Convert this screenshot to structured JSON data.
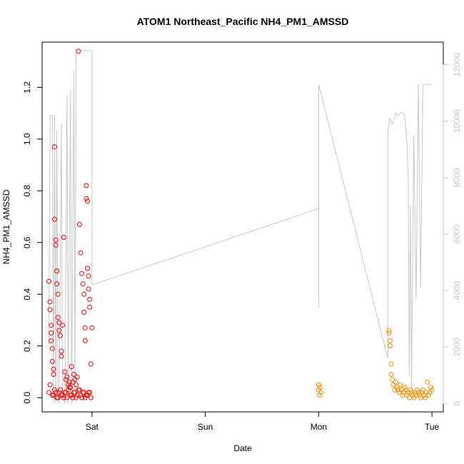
{
  "chart_data": {
    "type": "scatter",
    "title": "ATOM1 Northeast_Pacific NH4_PM1_AMSSD",
    "xlabel": "Date",
    "ylabel": "NH4_PM1_AMSSD",
    "x_ticks": [
      "Sat",
      "Sun",
      "Mon",
      "Tue"
    ],
    "y_ticks": [
      "0.0",
      "0.2",
      "0.4",
      "0.6",
      "0.8",
      "1.0",
      "1.2"
    ],
    "y2_ticks": [
      "0",
      "2000",
      "4000",
      "6000",
      "8000",
      "10000",
      "12000"
    ],
    "xlim_days": [
      -0.44,
      3.1
    ],
    "ylim": [
      -0.055,
      1.375
    ],
    "y2lim": [
      -300,
      12800
    ],
    "grid": false,
    "colors": {
      "series_1": "#ff0000",
      "series_2": "#ff8c00",
      "secondary_line": "#c8c8c8"
    },
    "series": [
      {
        "color": "#ff0000",
        "x_days": [
          -0.38,
          -0.37,
          -0.37,
          -0.36,
          -0.36,
          -0.36,
          -0.35,
          -0.35,
          -0.34,
          -0.34,
          -0.33,
          -0.33,
          -0.32,
          -0.32,
          -0.31,
          -0.31,
          -0.3,
          -0.3,
          -0.29,
          -0.29,
          -0.28,
          -0.27,
          -0.27,
          -0.26,
          -0.25,
          -0.24,
          -0.23,
          -0.22,
          -0.21,
          -0.2,
          -0.19,
          -0.18,
          -0.17,
          -0.16,
          -0.15,
          -0.14,
          -0.13,
          -0.12,
          -0.11,
          -0.1,
          -0.09,
          -0.08,
          -0.07,
          -0.07,
          -0.06,
          -0.06,
          -0.05,
          -0.05,
          -0.04,
          -0.04,
          -0.03,
          -0.03,
          -0.02,
          -0.02,
          -0.01,
          0.0,
          -0.38,
          -0.35,
          -0.33,
          -0.31,
          -0.29,
          -0.27,
          -0.25,
          -0.23,
          -0.21,
          -0.19,
          -0.17,
          -0.15,
          -0.13,
          -0.11,
          -0.09,
          -0.07,
          -0.05,
          -0.03,
          -0.01,
          -0.37,
          -0.34,
          -0.32,
          -0.3,
          -0.28,
          -0.26,
          -0.24,
          -0.22,
          -0.2,
          -0.18,
          -0.16,
          -0.14,
          -0.12,
          -0.1,
          -0.08,
          -0.06,
          -0.04,
          -0.02
        ],
        "y": [
          0.45,
          0.37,
          0.34,
          0.28,
          0.25,
          0.22,
          0.19,
          0.14,
          0.11,
          0.09,
          0.97,
          0.69,
          0.61,
          0.59,
          0.49,
          0.44,
          0.4,
          0.31,
          0.29,
          0.26,
          0.24,
          0.18,
          0.16,
          0.28,
          0.62,
          0.1,
          0.07,
          0.08,
          0.05,
          0.06,
          0.04,
          0.12,
          0.06,
          0.09,
          0.07,
          0.05,
          0.08,
          1.34,
          0.67,
          0.56,
          0.48,
          0.44,
          0.4,
          0.33,
          0.27,
          0.22,
          0.82,
          0.77,
          0.76,
          0.5,
          0.47,
          0.42,
          0.38,
          0.35,
          0.13,
          0.27,
          0.02,
          0.01,
          0.03,
          0.0,
          0.02,
          0.01,
          0.0,
          0.02,
          0.03,
          0.01,
          0.0,
          0.02,
          0.01,
          0.03,
          0.0,
          0.02,
          0.01,
          0.02,
          0.0,
          0.05,
          0.01,
          0.02,
          0.0,
          0.03,
          0.01,
          0.02,
          0.0,
          0.04,
          0.01,
          0.02,
          0.0,
          0.03,
          0.01,
          0.02,
          0.0,
          0.01,
          0.02
        ]
      },
      {
        "color": "#ff8c00",
        "x_days": [
          2.0,
          2.0,
          2.01,
          2.01,
          2.02,
          2.62,
          2.62,
          2.63,
          2.63,
          2.64,
          2.64,
          2.65,
          2.66,
          2.67,
          2.68,
          2.69,
          2.7,
          2.71,
          2.72,
          2.73,
          2.74,
          2.75,
          2.76,
          2.77,
          2.78,
          2.79,
          2.8,
          2.81,
          2.82,
          2.83,
          2.84,
          2.85,
          2.86,
          2.87,
          2.88,
          2.89,
          2.9,
          2.91,
          2.92,
          2.93,
          2.94,
          2.95,
          2.96,
          2.97,
          2.98,
          2.99,
          3.0
        ],
        "y": [
          0.05,
          0.03,
          0.01,
          0.04,
          0.02,
          0.26,
          0.25,
          0.22,
          0.2,
          0.13,
          0.09,
          0.07,
          0.05,
          0.03,
          0.06,
          0.04,
          0.03,
          0.02,
          0.05,
          0.03,
          0.01,
          0.02,
          0.04,
          0.03,
          0.01,
          0.02,
          0.0,
          0.03,
          0.02,
          0.01,
          0.0,
          0.02,
          0.01,
          0.03,
          0.02,
          0.01,
          0.0,
          0.02,
          0.03,
          0.01,
          0.0,
          0.02,
          0.06,
          0.01,
          0.02,
          0.04,
          0.03
        ]
      }
    ],
    "secondary_line": {
      "color": "#c8c8c8",
      "points": [
        [
          -0.38,
          2100
        ],
        [
          -0.37,
          10200
        ],
        [
          -0.35,
          10200
        ],
        [
          -0.34,
          0
        ],
        [
          -0.33,
          10200
        ],
        [
          -0.32,
          0
        ],
        [
          -0.31,
          9700
        ],
        [
          -0.3,
          200
        ],
        [
          -0.29,
          0
        ],
        [
          -0.27,
          9900
        ],
        [
          -0.26,
          300
        ],
        [
          -0.24,
          0
        ],
        [
          -0.22,
          10900
        ],
        [
          -0.21,
          0
        ],
        [
          -0.19,
          11100
        ],
        [
          -0.18,
          0
        ],
        [
          -0.16,
          11800
        ],
        [
          -0.15,
          500
        ],
        [
          -0.14,
          12500
        ],
        [
          -0.12,
          12500
        ],
        [
          0.0,
          12500
        ],
        [
          0.0,
          4200
        ],
        [
          2.0,
          6900
        ],
        [
          2.0,
          3400
        ],
        [
          2.0,
          11300
        ],
        [
          2.0,
          11300
        ],
        [
          2.61,
          1600
        ],
        [
          2.61,
          9600
        ],
        [
          2.63,
          10100
        ],
        [
          2.65,
          9900
        ],
        [
          2.67,
          10100
        ],
        [
          2.68,
          10300
        ],
        [
          2.7,
          10200
        ],
        [
          2.72,
          10300
        ],
        [
          2.74,
          10300
        ],
        [
          2.76,
          10200
        ],
        [
          2.78,
          9200
        ],
        [
          2.79,
          8000
        ],
        [
          2.8,
          1000
        ],
        [
          2.81,
          7000
        ],
        [
          2.82,
          500
        ],
        [
          2.84,
          9500
        ],
        [
          2.86,
          3700
        ],
        [
          2.88,
          11300
        ],
        [
          2.9,
          4100
        ],
        [
          2.92,
          11300
        ],
        [
          3.0,
          11300
        ]
      ]
    }
  }
}
